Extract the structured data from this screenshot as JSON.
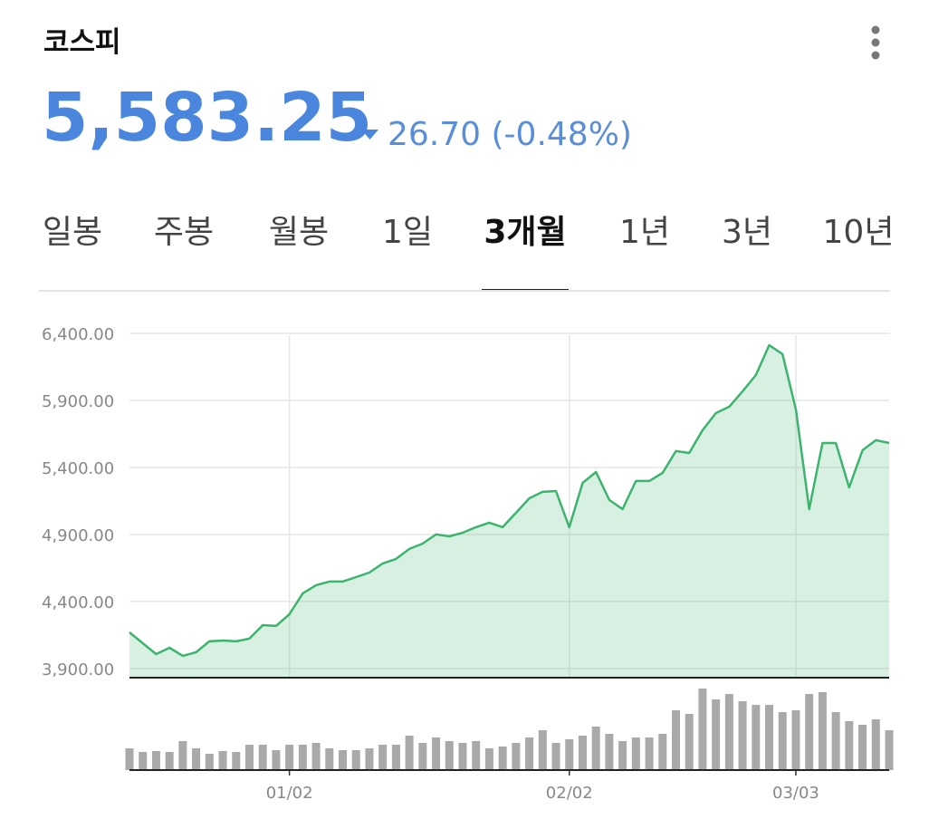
{
  "header": {
    "title": "코스피",
    "price": "5,583.25",
    "change": "26.70 (-0.48%)"
  },
  "tabs": {
    "items": [
      "일봉",
      "주봉",
      "월봉",
      "1일",
      "3개월",
      "1년",
      "3년",
      "10년"
    ],
    "selected": 4
  },
  "chart_data": {
    "type": "line",
    "categories": [
      null,
      null,
      null,
      null,
      null,
      null,
      null,
      null,
      null,
      null,
      null,
      null,
      "01/02",
      null,
      null,
      null,
      null,
      null,
      null,
      null,
      null,
      null,
      null,
      null,
      null,
      null,
      null,
      null,
      null,
      null,
      null,
      null,
      null,
      "02/02",
      null,
      null,
      null,
      null,
      null,
      null,
      null,
      null,
      null,
      null,
      null,
      null,
      null,
      null,
      null,
      null,
      "03/03",
      null,
      null,
      null,
      null,
      null,
      null,
      null
    ],
    "series": [
      {
        "color": "#3cb46e",
        "values": [
          4170,
          4089,
          4008,
          4055,
          3995,
          4022,
          4103,
          4109,
          4103,
          4123,
          4224,
          4218,
          4305,
          4461,
          4522,
          4549,
          4549,
          4582,
          4616,
          4684,
          4718,
          4792,
          4832,
          4900,
          4886,
          4913,
          4954,
          4988,
          4954,
          5062,
          5170,
          5218,
          5224,
          4954,
          5285,
          5366,
          5157,
          5089,
          5299,
          5299,
          5359,
          5522,
          5508,
          5677,
          5805,
          5853,
          5968,
          6089,
          6312,
          6245,
          5832,
          5089,
          5582,
          5582,
          5251,
          5528,
          5603,
          5582
        ]
      }
    ],
    "ylim": [
      3832,
      6555
    ],
    "yticks": [
      {
        "value": 6400,
        "label": "6,400.00"
      },
      {
        "value": 5900,
        "label": "5,900.00"
      },
      {
        "value": 5400,
        "label": "5,400.00"
      },
      {
        "value": 4900,
        "label": "4,900.00"
      },
      {
        "value": 4400,
        "label": "4,400.00"
      },
      {
        "value": 3900,
        "label": "3,900.00"
      }
    ],
    "grid": true,
    "volume": {
      "color": "#a9a9a9",
      "ylim": [
        0,
        100
      ],
      "values": [
        24,
        20,
        21,
        20,
        32,
        24,
        18,
        21,
        20,
        28,
        28,
        22,
        28,
        28,
        30,
        24,
        22,
        22,
        24,
        28,
        28,
        38,
        30,
        36,
        32,
        30,
        32,
        24,
        26,
        30,
        36,
        44,
        30,
        34,
        38,
        48,
        40,
        32,
        36,
        36,
        40,
        66,
        62,
        90,
        78,
        84,
        76,
        72,
        72,
        64,
        66,
        84,
        86,
        64,
        54,
        50,
        56,
        44
      ]
    }
  }
}
